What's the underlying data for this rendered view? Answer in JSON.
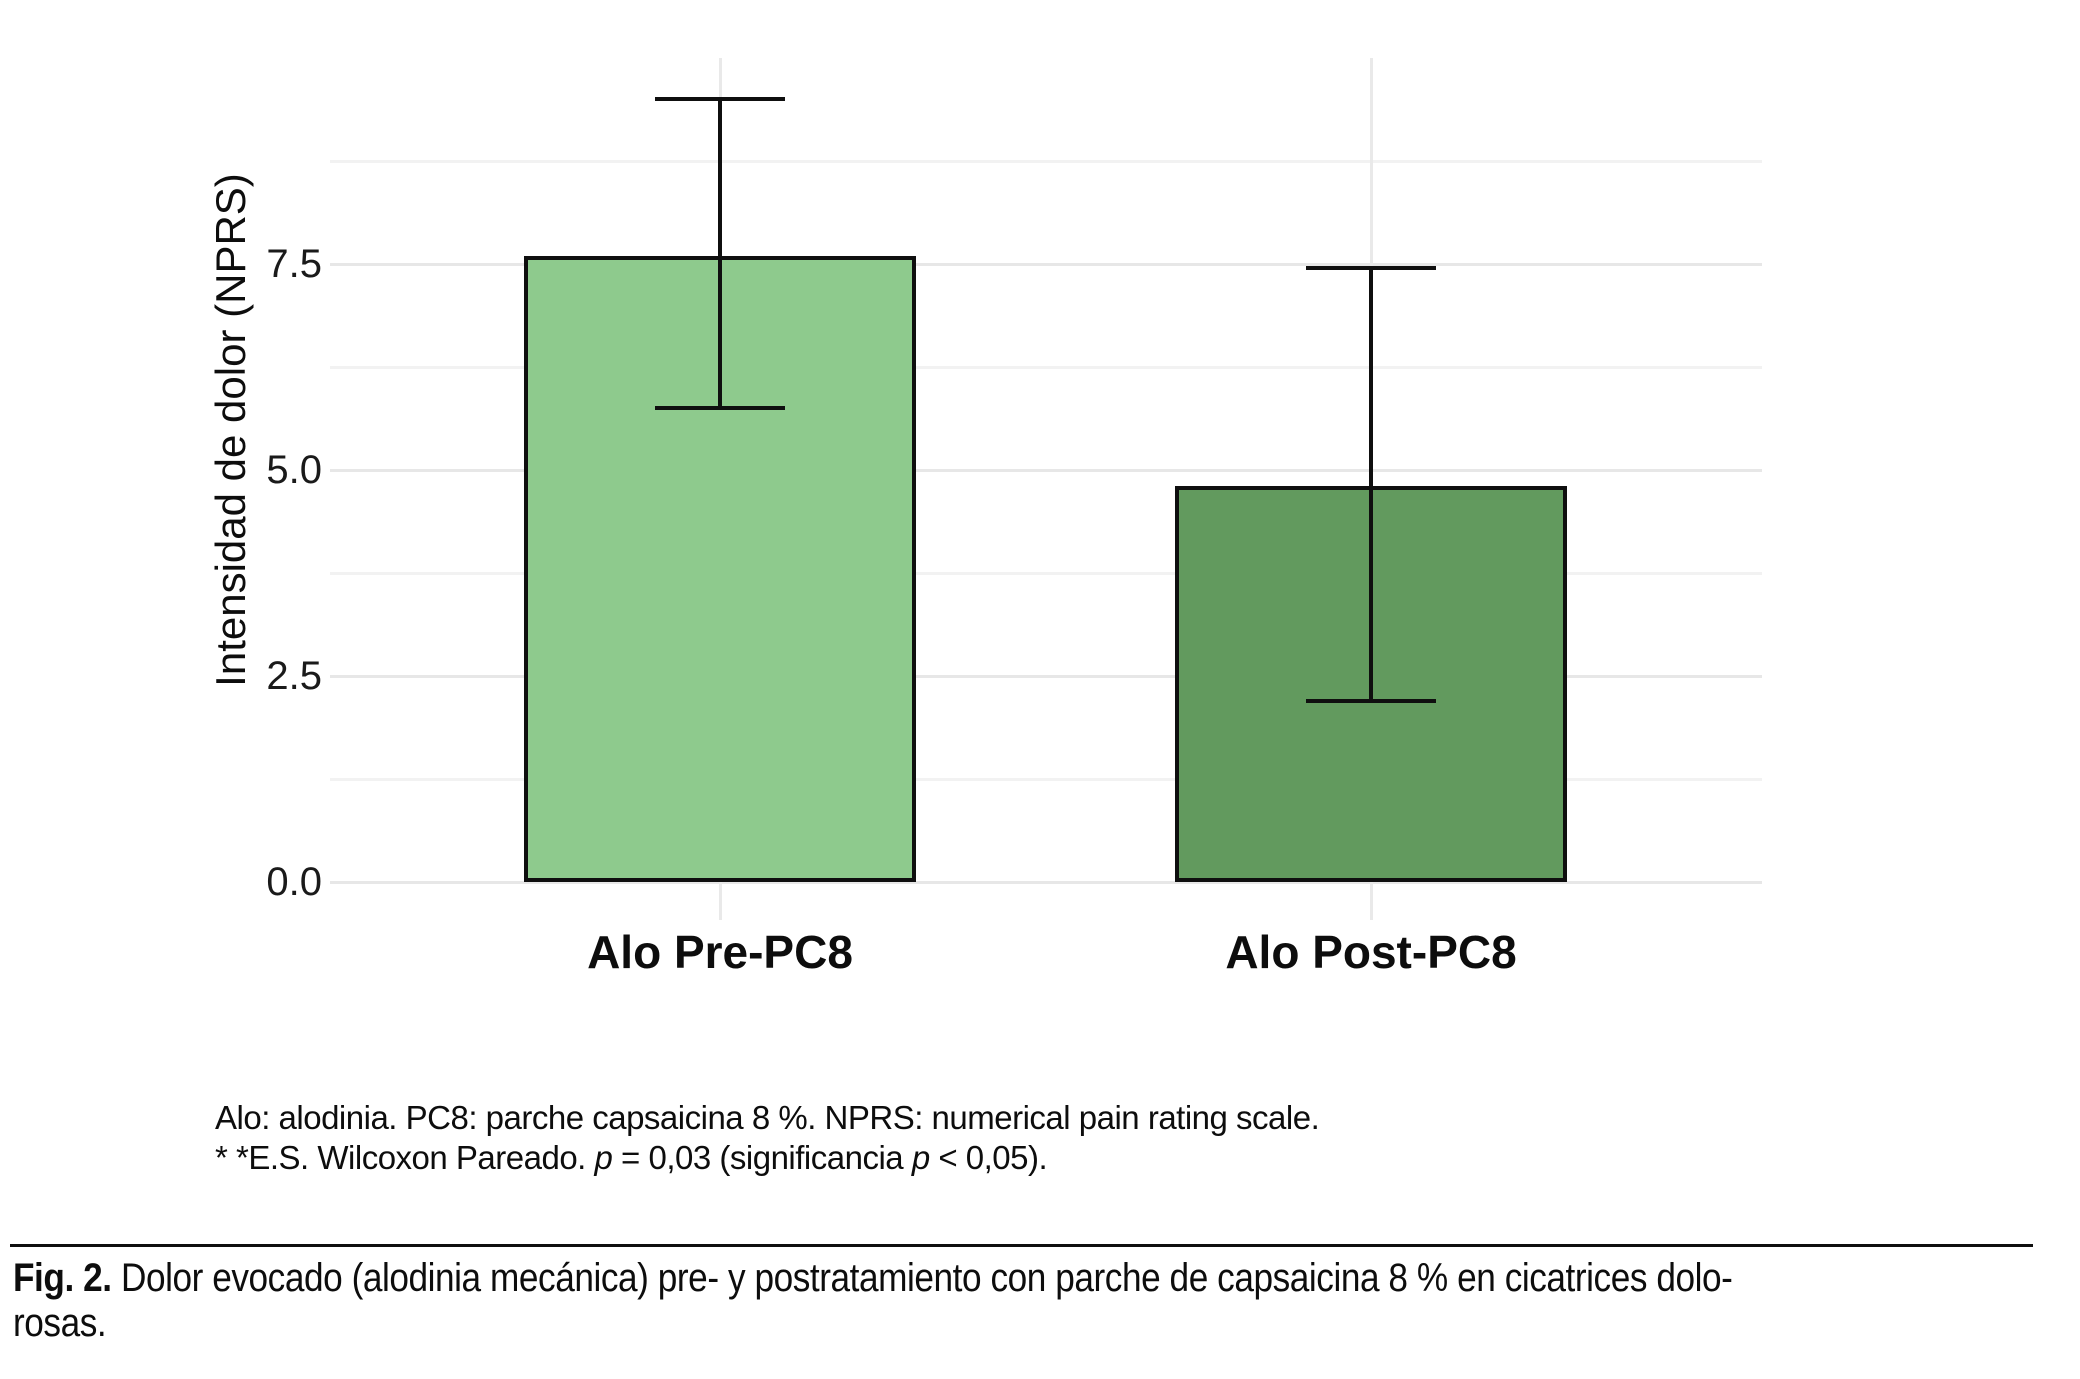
{
  "chart_data": {
    "type": "bar",
    "title": "",
    "xlabel": "",
    "ylabel": "Intensidad de dolor (NPRS)",
    "categories": [
      "Alo Pre-PC8",
      "Alo Post-PC8"
    ],
    "values": [
      7.6,
      4.8
    ],
    "error_bars": [
      {
        "low": 5.75,
        "high": 9.5
      },
      {
        "low": 2.2,
        "high": 7.45
      }
    ],
    "bar_colors": [
      "#8ECA8D",
      "#629A5E"
    ],
    "bar_border_color": "#0f0f0f",
    "error_bar_color": "#0f0f0f",
    "yticks": [
      0.0,
      2.5,
      5.0,
      7.5
    ],
    "ytick_labels": [
      "0.0",
      "2.5",
      "5.0",
      "7.5"
    ],
    "yticks_minor": [
      1.25,
      3.75,
      6.25,
      8.75
    ],
    "ylim": [
      0,
      10
    ],
    "grid": {
      "horizontal": "major+minor",
      "vertical": "category-centers",
      "background": "#ffffff"
    },
    "gridline_major_color": "#e7e7e7",
    "gridline_minor_color": "#f2f2f2",
    "legend": "none"
  },
  "footnote": {
    "line1": "Alo: alodinia. PC8: parche capsaicina 8 %. NPRS: numerical pain rating scale.",
    "line2_segments": [
      {
        "text": "* *E.S. Wilcoxon Pareado. ",
        "italic": false
      },
      {
        "text": "p",
        "italic": true
      },
      {
        "text": " = 0,03 (significancia ",
        "italic": false
      },
      {
        "text": "p",
        "italic": true
      },
      {
        "text": " < 0,05).",
        "italic": false
      }
    ]
  },
  "caption": {
    "label": "Fig. 2.",
    "line1": " Dolor evocado (alodinia mecánica) pre- y postratamiento con parche de capsaicina 8 % en cicatrices dolo-",
    "line2": "rosas."
  }
}
